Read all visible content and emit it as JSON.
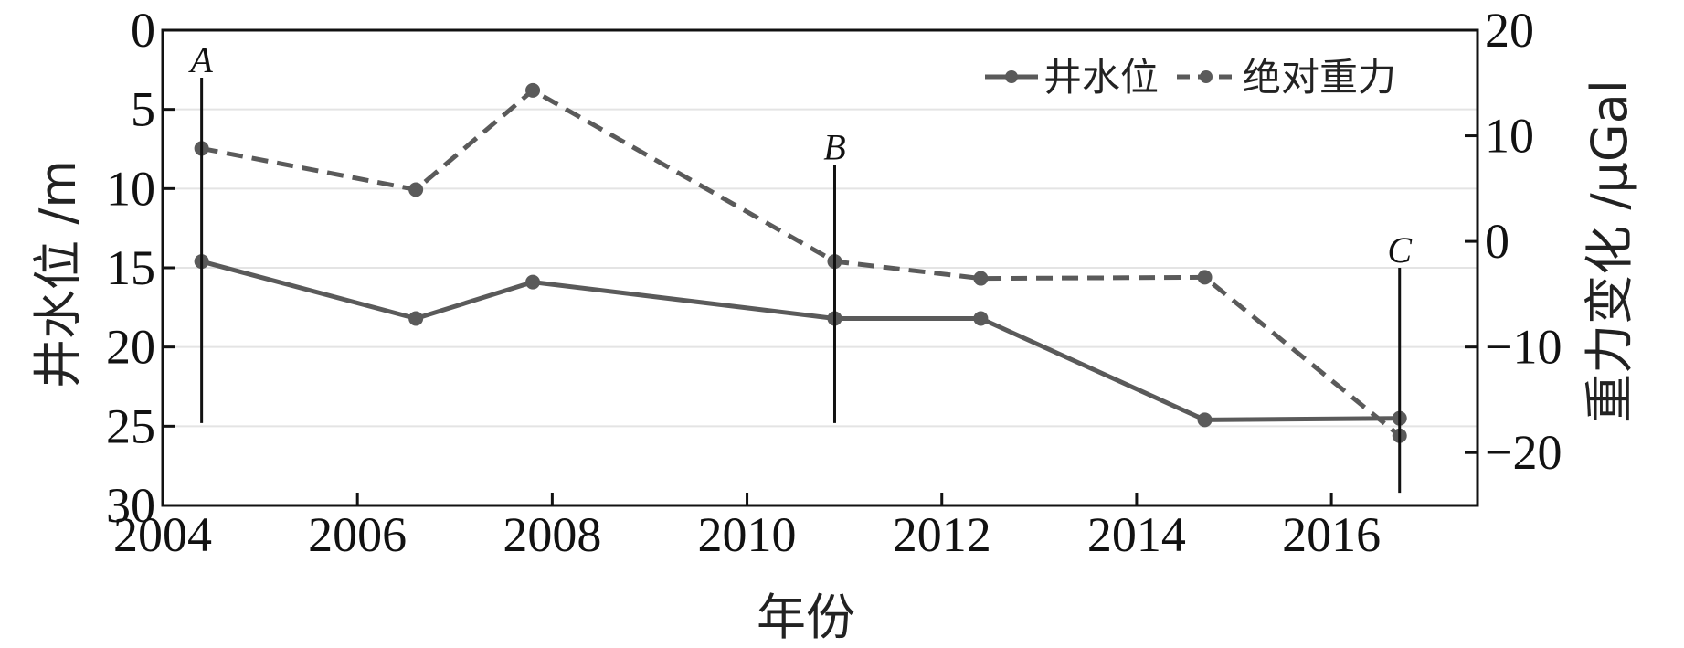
{
  "chart_data": {
    "type": "line",
    "xlabel": "年份",
    "ylabel_left": "井水位 /m",
    "ylabel_right": "重力变化 /μGal",
    "xlim": [
      2004,
      2017.5
    ],
    "ylim_left": [
      30,
      0
    ],
    "ylim_right": [
      -25,
      20
    ],
    "left_axis_inverted": true,
    "x_ticks": [
      "2004",
      "2006",
      "2008",
      "2010",
      "2012",
      "2014",
      "2016"
    ],
    "y_left_ticks": [
      "0",
      "5",
      "10",
      "15",
      "20",
      "25",
      "30"
    ],
    "y_right_ticks": [
      "20",
      "10",
      "0",
      "−10",
      "−20"
    ],
    "grid": "horizontal",
    "legend_position": "top-right",
    "series": [
      {
        "name": "井水位",
        "axis": "left",
        "style": "solid",
        "color": "#5a5a5a",
        "x": [
          2004.4,
          2006.6,
          2007.8,
          2010.9,
          2012.4,
          2014.7,
          2016.7
        ],
        "y": [
          14.6,
          18.2,
          15.9,
          18.2,
          18.2,
          24.6,
          24.5
        ]
      },
      {
        "name": "绝对重力",
        "axis": "right",
        "style": "dashed",
        "color": "#5a5a5a",
        "x": [
          2004.4,
          2006.6,
          2007.8,
          2010.9,
          2012.4,
          2014.7,
          2016.7
        ],
        "y": [
          8.8,
          4.9,
          14.3,
          -1.9,
          -3.5,
          -3.4,
          -18.4
        ]
      }
    ],
    "annotations": [
      {
        "label": "A",
        "x": 2004.4,
        "y_top": 3,
        "y_bottom": 24.8
      },
      {
        "label": "B",
        "x": 2010.9,
        "y_top": 8.5,
        "y_bottom": 24.8
      },
      {
        "label": "C",
        "x": 2016.7,
        "y_top": 15,
        "y_bottom": 29.2
      }
    ]
  }
}
